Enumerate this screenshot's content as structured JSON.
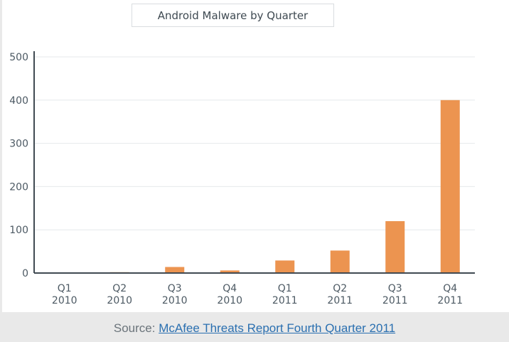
{
  "chart_data": {
    "type": "bar",
    "title": "Android Malware by Quarter",
    "categories": [
      [
        "Q1",
        "2010"
      ],
      [
        "Q2",
        "2010"
      ],
      [
        "Q3",
        "2010"
      ],
      [
        "Q4",
        "2010"
      ],
      [
        "Q1",
        "2011"
      ],
      [
        "Q2",
        "2011"
      ],
      [
        "Q3",
        "2011"
      ],
      [
        "Q4",
        "2011"
      ]
    ],
    "values": [
      1,
      2,
      14,
      6,
      29,
      52,
      120,
      400
    ],
    "ylim": [
      0,
      500
    ],
    "yticks": [
      0,
      100,
      200,
      300,
      400,
      500
    ],
    "xlabel": "",
    "ylabel": "",
    "grid": true,
    "bar_color": "#ec9450",
    "grid_color": "#e6e9eb",
    "axis_color": "#404a52"
  },
  "source": {
    "prefix": "Source: ",
    "link_text": "McAfee Threats Report Fourth Quarter 2011"
  }
}
